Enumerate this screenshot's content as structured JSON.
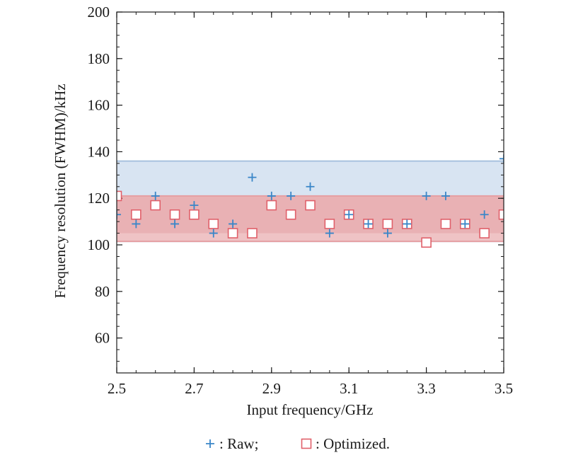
{
  "chart_data": {
    "type": "scatter",
    "title": "",
    "xlabel": "Input frequency/GHz",
    "ylabel": "Frequency resolution (FWHM)/kHz",
    "xlim": [
      2.5,
      3.5
    ],
    "ylim": [
      45,
      200
    ],
    "x_ticks": [
      2.5,
      2.7,
      2.9,
      3.1,
      3.3,
      3.5
    ],
    "x_tick_labels": [
      "2.5",
      "2.7",
      "2.9",
      "3.1",
      "3.3",
      "3.5"
    ],
    "y_ticks": [
      60,
      80,
      100,
      120,
      140,
      160,
      180,
      200
    ],
    "y_tick_labels": [
      "60",
      "80",
      "100",
      "120",
      "140",
      "160",
      "180",
      "200"
    ],
    "x_minor_step": 0.05,
    "y_minor_step": 5,
    "grid": false,
    "legend_position": "bottom-center",
    "bands": [
      {
        "series": "Raw",
        "y_min": 101.5,
        "y_max": 136,
        "fill": "#d8e4f2",
        "edge": "#a7c0de"
      },
      {
        "series": "Optimized",
        "y_min": 101.5,
        "y_max": 121,
        "fill": "#efc3c5",
        "edge": "#e59fa3",
        "inner_y_min": 105,
        "inner_fill": "#e9b1b4"
      }
    ],
    "series": [
      {
        "name": "Raw",
        "marker": "plus",
        "color": "#3a86c8",
        "x": [
          2.5,
          2.55,
          2.6,
          2.65,
          2.7,
          2.75,
          2.8,
          2.85,
          2.9,
          2.95,
          3.0,
          3.05,
          3.1,
          3.15,
          3.2,
          3.25,
          3.3,
          3.35,
          3.4,
          3.45,
          3.5
        ],
        "y": [
          113,
          109,
          121,
          109,
          117,
          105,
          109,
          129,
          121,
          121,
          125,
          105,
          113,
          109,
          105,
          109,
          121,
          121,
          109,
          113,
          137
        ]
      },
      {
        "name": "Optimized",
        "marker": "square",
        "color": "#e0606a",
        "x": [
          2.5,
          2.55,
          2.6,
          2.65,
          2.7,
          2.75,
          2.8,
          2.85,
          2.9,
          2.95,
          3.0,
          3.05,
          3.1,
          3.15,
          3.2,
          3.25,
          3.3,
          3.35,
          3.4,
          3.45,
          3.5
        ],
        "y": [
          121,
          113,
          117,
          113,
          113,
          109,
          105,
          105,
          117,
          113,
          117,
          109,
          113,
          109,
          109,
          109,
          101,
          109,
          109,
          105,
          113
        ]
      }
    ]
  },
  "legend": {
    "raw_label": ": Raw;",
    "optimized_label": ": Optimized."
  }
}
